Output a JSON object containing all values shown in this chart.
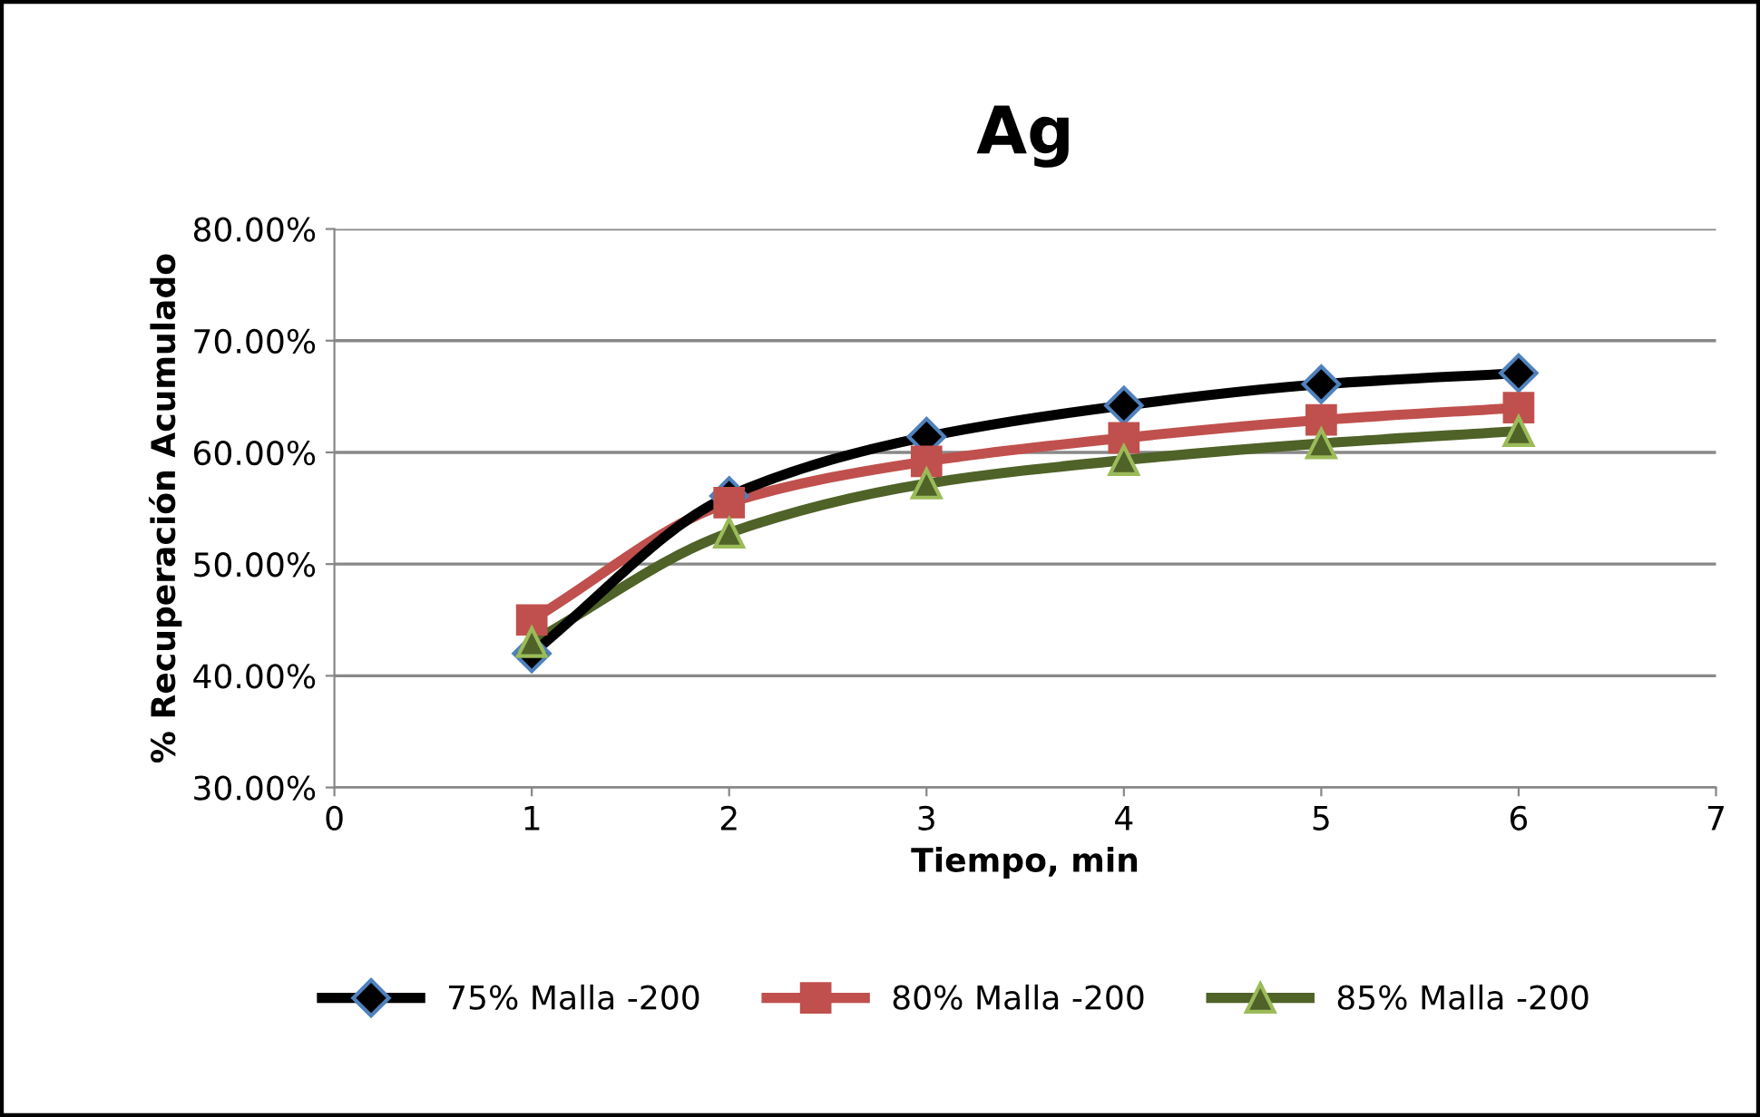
{
  "chart_data": {
    "type": "line",
    "title": "Ag",
    "xlabel": "Tiempo, min",
    "ylabel": "% Recuperación Acumulado",
    "x": [
      1,
      2,
      3,
      4,
      5,
      6
    ],
    "series": [
      {
        "name": "75% Malla -200",
        "color": "#000000",
        "marker": "diamond",
        "values": [
          42.0,
          56.1,
          61.4,
          64.2,
          66.1,
          67.1
        ]
      },
      {
        "name": "80% Malla -200",
        "color": "#c0504d",
        "marker": "square",
        "values": [
          45.0,
          55.5,
          59.2,
          61.3,
          62.9,
          64.0
        ]
      },
      {
        "name": "85% Malla -200",
        "color": "#4f6228",
        "marker": "triangle",
        "values": [
          43.0,
          52.8,
          57.2,
          59.3,
          60.8,
          61.9
        ]
      }
    ],
    "xlim": [
      0,
      7
    ],
    "xticks": [
      0,
      1,
      2,
      3,
      4,
      5,
      6,
      7
    ],
    "ylim": [
      30,
      80
    ],
    "yticks": [
      {
        "value": 30,
        "label": "30.00%"
      },
      {
        "value": 40,
        "label": "40.00%"
      },
      {
        "value": 50,
        "label": "50.00%"
      },
      {
        "value": 60,
        "label": "60.00%"
      },
      {
        "value": 70,
        "label": "70.00%"
      },
      {
        "value": 80,
        "label": "80.00%"
      }
    ],
    "grid": "y",
    "legend": "bottom"
  }
}
